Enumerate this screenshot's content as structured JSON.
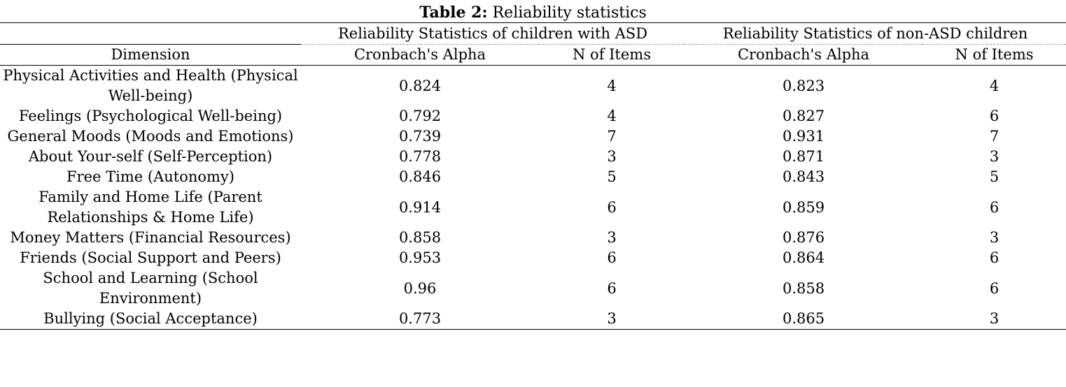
{
  "caption": {
    "label": "Table 2:",
    "title": "Reliability statistics"
  },
  "table": {
    "group_headers": [
      "Reliability Statistics of children with ASD",
      "Reliability Statistics of non-ASD children"
    ],
    "column_headers": [
      "Dimension",
      "Cronbach's Alpha",
      "N of Items",
      "Cronbach's Alpha",
      "N of Items"
    ],
    "rows": [
      {
        "dimension": "Physical Activities and Health (Physical Well-being)",
        "asd_alpha": "0.824",
        "asd_items": "4",
        "non_asd_alpha": "0.823",
        "non_asd_items": "4"
      },
      {
        "dimension": "Feelings (Psychological Well-being)",
        "asd_alpha": "0.792",
        "asd_items": "4",
        "non_asd_alpha": "0.827",
        "non_asd_items": "6"
      },
      {
        "dimension": "General Moods (Moods and Emotions)",
        "asd_alpha": "0.739",
        "asd_items": "7",
        "non_asd_alpha": "0.931",
        "non_asd_items": "7"
      },
      {
        "dimension": "About Your-self (Self-Perception)",
        "asd_alpha": "0.778",
        "asd_items": "3",
        "non_asd_alpha": "0.871",
        "non_asd_items": "3"
      },
      {
        "dimension": "Free Time (Autonomy)",
        "asd_alpha": "0.846",
        "asd_items": "5",
        "non_asd_alpha": "0.843",
        "non_asd_items": "5"
      },
      {
        "dimension": "Family and Home Life (Parent Relationships & Home Life)",
        "asd_alpha": "0.914",
        "asd_items": "6",
        "non_asd_alpha": "0.859",
        "non_asd_items": "6"
      },
      {
        "dimension": "Money Matters (Financial Resources)",
        "asd_alpha": "0.858",
        "asd_items": "3",
        "non_asd_alpha": "0.876",
        "non_asd_items": "3"
      },
      {
        "dimension": "Friends (Social Support and Peers)",
        "asd_alpha": "0.953",
        "asd_items": "6",
        "non_asd_alpha": "0.864",
        "non_asd_items": "6"
      },
      {
        "dimension": "School and Learning (School Environment)",
        "asd_alpha": "0.96",
        "asd_items": "6",
        "non_asd_alpha": "0.858",
        "non_asd_items": "6"
      },
      {
        "dimension": "Bullying (Social Acceptance)",
        "asd_alpha": "0.773",
        "asd_items": "3",
        "non_asd_alpha": "0.865",
        "non_asd_items": "3"
      }
    ]
  }
}
